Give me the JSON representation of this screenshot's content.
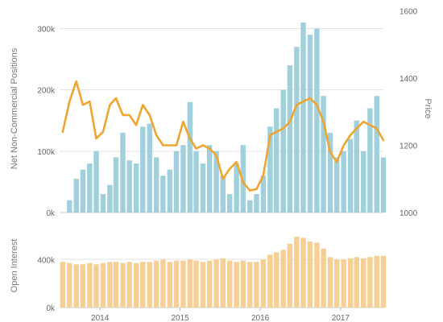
{
  "chart_data": [
    {
      "panel": "top",
      "type": "bar+line",
      "title": "",
      "xlabel": "",
      "ylabel": "Net Non-Commercial Positions",
      "y2label": "Price",
      "ylim": [
        0,
        340000
      ],
      "y2lim": [
        1000,
        1620
      ],
      "yticks": [
        0,
        100000,
        200000,
        300000
      ],
      "yticklabels": [
        "0k",
        "100k",
        "200k",
        "300k"
      ],
      "y2ticks": [
        1000,
        1200,
        1400,
        1600
      ],
      "y2ticklabels": [
        "1000",
        "1200",
        "1400",
        "1600"
      ],
      "grid": true,
      "legend": "none",
      "series": [
        {
          "type": "bar",
          "color": "#9fd0dc",
          "x": [
            "2013-08",
            "2013-09",
            "2013-10",
            "2013-11",
            "2013-12",
            "2014-01",
            "2014-02",
            "2014-03",
            "2014-04",
            "2014-05",
            "2014-06",
            "2014-07",
            "2014-08",
            "2014-09",
            "2014-10",
            "2014-11",
            "2014-12",
            "2015-01",
            "2015-02",
            "2015-03",
            "2015-04",
            "2015-05",
            "2015-06",
            "2015-07",
            "2015-08",
            "2015-09",
            "2015-10",
            "2015-11",
            "2015-12",
            "2016-01",
            "2016-02",
            "2016-03",
            "2016-04",
            "2016-05",
            "2016-06",
            "2016-07",
            "2016-08",
            "2016-09",
            "2016-10",
            "2016-11",
            "2016-12",
            "2017-01",
            "2017-02",
            "2017-03",
            "2017-04",
            "2017-05",
            "2017-06",
            "2017-07"
          ],
          "values": [
            20000,
            55000,
            70000,
            80000,
            100000,
            30000,
            45000,
            90000,
            130000,
            85000,
            80000,
            140000,
            145000,
            90000,
            60000,
            70000,
            100000,
            110000,
            180000,
            100000,
            80000,
            110000,
            100000,
            60000,
            30000,
            80000,
            110000,
            20000,
            30000,
            60000,
            140000,
            170000,
            200000,
            240000,
            270000,
            310000,
            290000,
            300000,
            190000,
            130000,
            90000,
            100000,
            120000,
            150000,
            100000,
            170000,
            190000,
            90000
          ]
        },
        {
          "type": "line",
          "axis": "right",
          "color": "#f0a530",
          "x": [
            "2013-07",
            "2013-08",
            "2013-09",
            "2013-10",
            "2013-11",
            "2013-12",
            "2014-01",
            "2014-02",
            "2014-03",
            "2014-04",
            "2014-05",
            "2014-06",
            "2014-07",
            "2014-08",
            "2014-09",
            "2014-10",
            "2014-11",
            "2014-12",
            "2015-01",
            "2015-02",
            "2015-03",
            "2015-04",
            "2015-05",
            "2015-06",
            "2015-07",
            "2015-08",
            "2015-09",
            "2015-10",
            "2015-11",
            "2015-12",
            "2016-01",
            "2016-02",
            "2016-03",
            "2016-04",
            "2016-05",
            "2016-06",
            "2016-07",
            "2016-08",
            "2016-09",
            "2016-10",
            "2016-11",
            "2016-12",
            "2017-01",
            "2017-02",
            "2017-03",
            "2017-04",
            "2017-05",
            "2017-06",
            "2017-07"
          ],
          "values": [
            1240,
            1330,
            1390,
            1320,
            1330,
            1220,
            1240,
            1320,
            1340,
            1290,
            1290,
            1260,
            1320,
            1290,
            1230,
            1200,
            1200,
            1200,
            1270,
            1220,
            1190,
            1200,
            1190,
            1170,
            1100,
            1130,
            1150,
            1090,
            1065,
            1070,
            1110,
            1230,
            1240,
            1250,
            1270,
            1320,
            1330,
            1340,
            1320,
            1270,
            1180,
            1150,
            1200,
            1230,
            1250,
            1270,
            1260,
            1250,
            1215
          ]
        }
      ]
    },
    {
      "panel": "bottom",
      "type": "bar",
      "title": "",
      "xlabel": "",
      "ylabel": "Open Interest",
      "ylim": [
        0,
        650000
      ],
      "yticks": [
        0,
        400000
      ],
      "yticklabels": [
        "0k",
        "400k"
      ],
      "grid": true,
      "legend": "none",
      "xticks": [
        "2014",
        "2015",
        "2016",
        "2017"
      ],
      "series": [
        {
          "type": "bar",
          "color": "#f7cf94",
          "x": [
            "2013-07",
            "2013-08",
            "2013-09",
            "2013-10",
            "2013-11",
            "2013-12",
            "2014-01",
            "2014-02",
            "2014-03",
            "2014-04",
            "2014-05",
            "2014-06",
            "2014-07",
            "2014-08",
            "2014-09",
            "2014-10",
            "2014-11",
            "2014-12",
            "2015-01",
            "2015-02",
            "2015-03",
            "2015-04",
            "2015-05",
            "2015-06",
            "2015-07",
            "2015-08",
            "2015-09",
            "2015-10",
            "2015-11",
            "2015-12",
            "2016-01",
            "2016-02",
            "2016-03",
            "2016-04",
            "2016-05",
            "2016-06",
            "2016-07",
            "2016-08",
            "2016-09",
            "2016-10",
            "2016-11",
            "2016-12",
            "2017-01",
            "2017-02",
            "2017-03",
            "2017-04",
            "2017-05",
            "2017-06",
            "2017-07"
          ],
          "values": [
            380000,
            370000,
            360000,
            360000,
            370000,
            360000,
            370000,
            380000,
            380000,
            370000,
            380000,
            370000,
            380000,
            380000,
            390000,
            400000,
            380000,
            390000,
            390000,
            400000,
            390000,
            380000,
            390000,
            400000,
            410000,
            390000,
            380000,
            390000,
            380000,
            380000,
            400000,
            440000,
            460000,
            480000,
            530000,
            590000,
            580000,
            550000,
            540000,
            490000,
            420000,
            400000,
            400000,
            410000,
            420000,
            410000,
            420000,
            430000,
            430000
          ]
        }
      ]
    }
  ]
}
